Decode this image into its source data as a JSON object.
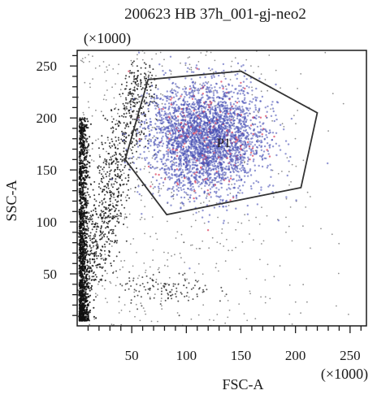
{
  "chart_data": {
    "type": "scatter",
    "title": "200623 HB 37h_001-gj-neo2",
    "xlabel": "FSC-A",
    "ylabel": "SSC-A",
    "x_multiplier_label": "(×1000)",
    "y_multiplier_label": "(×1000)",
    "xlim": [
      0,
      265
    ],
    "ylim": [
      0,
      265
    ],
    "x_ticks": [
      50,
      100,
      150,
      200,
      250
    ],
    "y_ticks": [
      50,
      100,
      150,
      200,
      250
    ],
    "x_tick_labels": [
      "50",
      "100",
      "150",
      "200",
      "250"
    ],
    "y_tick_labels": [
      "50",
      "100",
      "150",
      "200",
      "250"
    ],
    "gate": {
      "name": "P1",
      "label_position": [
        128,
        172
      ],
      "polygon": [
        [
          44,
          160
        ],
        [
          65,
          237
        ],
        [
          150,
          245
        ],
        [
          220,
          205
        ],
        [
          205,
          133
        ],
        [
          82,
          107
        ]
      ]
    },
    "populations": [
      {
        "kind": "debris-column",
        "color": "#111111",
        "approx_count": 1400,
        "center": [
          8,
          70
        ],
        "spread": [
          4,
          50
        ],
        "y_range": [
          5,
          200
        ]
      },
      {
        "kind": "diagonal-band",
        "color": "#111111",
        "approx_count": 900,
        "start": [
          8,
          40
        ],
        "end": [
          60,
          245
        ],
        "spread": 9
      },
      {
        "kind": "sparse-background",
        "color": "#333333",
        "approx_count": 600,
        "x_range": [
          0,
          265
        ],
        "y_range": [
          0,
          265
        ]
      },
      {
        "kind": "low-cluster",
        "color": "#222222",
        "approx_count": 120,
        "center": [
          80,
          35
        ],
        "spread": [
          22,
          8
        ]
      },
      {
        "kind": "gated-cells",
        "color": "#4a52b5",
        "highlight_color": "#e0506a",
        "approx_count": 3200,
        "center": [
          118,
          180
        ],
        "spread": [
          26,
          26
        ]
      }
    ]
  }
}
